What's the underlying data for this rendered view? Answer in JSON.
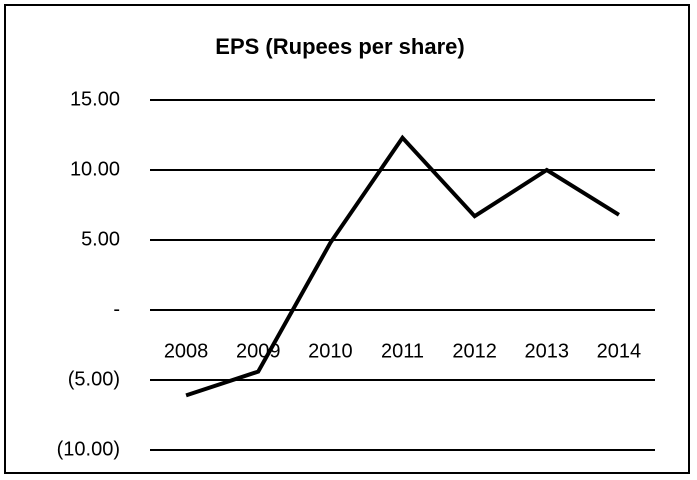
{
  "chart_data": {
    "type": "line",
    "title": "EPS (Rupees per share)",
    "categories": [
      "2008",
      "2009",
      "2010",
      "2011",
      "2012",
      "2013",
      "2014"
    ],
    "series": [
      {
        "name": "EPS",
        "color": "#000000",
        "values": [
          -6.1,
          -4.4,
          4.8,
          12.3,
          6.7,
          10.0,
          6.8
        ]
      }
    ],
    "ylim": [
      -10,
      15
    ],
    "yticks": [
      {
        "value": -10,
        "label": "(10.00)"
      },
      {
        "value": -5,
        "label": "(5.00)"
      },
      {
        "value": 0,
        "label": "-"
      },
      {
        "value": 5,
        "label": "5.00"
      },
      {
        "value": 10,
        "label": "10.00"
      },
      {
        "value": 15,
        "label": "15.00"
      }
    ],
    "grid": true
  }
}
